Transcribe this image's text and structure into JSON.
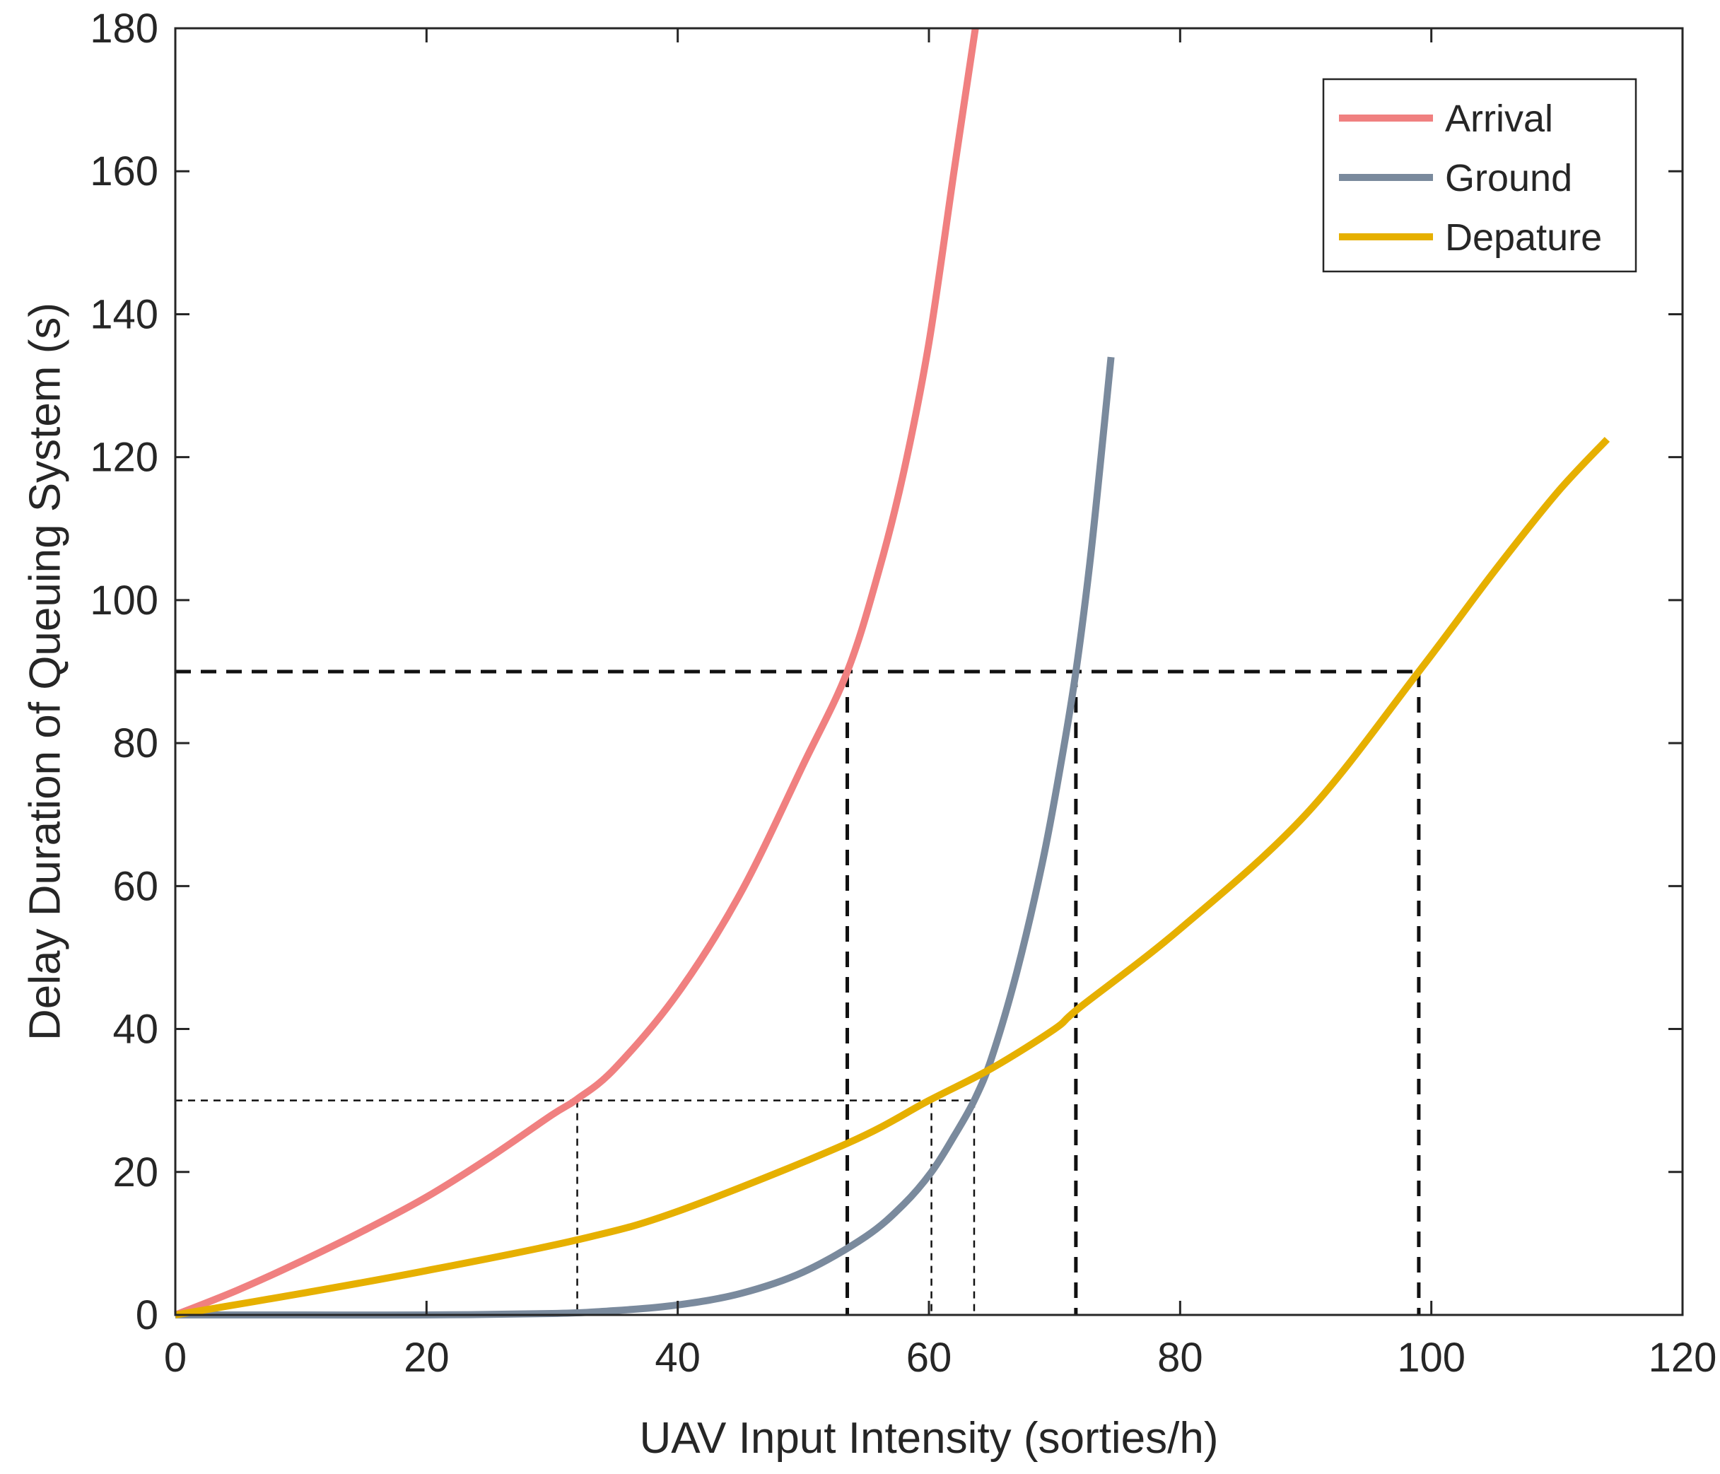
{
  "chart_data": {
    "type": "line",
    "xlabel": "UAV Input Intensity (sorties/h)",
    "ylabel": "Delay Duration of Queuing System (s)",
    "xlim": [
      0,
      120
    ],
    "ylim": [
      0,
      180
    ],
    "xticks": [
      0,
      20,
      40,
      60,
      80,
      100,
      120
    ],
    "yticks": [
      0,
      20,
      40,
      60,
      80,
      100,
      120,
      140,
      160,
      180
    ],
    "xtick_labels": [
      "0",
      "20",
      "40",
      "60",
      "80",
      "100",
      "120"
    ],
    "ytick_labels": [
      "0",
      "20",
      "40",
      "60",
      "80",
      "100",
      "120",
      "140",
      "160",
      "180"
    ],
    "grid": false,
    "legend_position": "top-right",
    "series": [
      {
        "name": "Arrival",
        "color": "#f08080",
        "x": [
          0,
          5,
          10,
          15,
          20,
          25,
          30,
          32,
          35,
          40,
          45,
          50,
          53.5,
          56,
          58,
          60,
          62,
          63.7
        ],
        "y": [
          0,
          3.5,
          7.5,
          11.8,
          16.5,
          22,
          28,
          30.2,
          34.5,
          45,
          59,
          77,
          90,
          104,
          118,
          136,
          160,
          180
        ]
      },
      {
        "name": "Ground",
        "color": "#7a8a9d",
        "x": [
          0,
          10,
          20,
          30,
          35,
          40,
          45,
          50,
          55,
          58,
          60.2,
          62,
          63.6,
          65,
          67,
          69,
          70.5,
          71.7,
          72.8,
          73.7,
          74.5
        ],
        "y": [
          0,
          0,
          0,
          0.2,
          0.6,
          1.4,
          3.0,
          6.0,
          11.0,
          15.5,
          20,
          25,
          30,
          36,
          48,
          63,
          77,
          90,
          105,
          120,
          134
        ]
      },
      {
        "name": "Depature",
        "color": "#e6b000",
        "x": [
          0,
          10,
          20,
          32,
          40,
          53.5,
          60,
          65,
          70,
          72,
          80,
          90,
          99,
          105,
          110,
          114
        ],
        "y": [
          0,
          3,
          6.2,
          10.5,
          14.5,
          24,
          30,
          34.5,
          40,
          43,
          54,
          70,
          90,
          104,
          115,
          122.5
        ]
      }
    ],
    "reference_lines": [
      {
        "style": "bold-dashed",
        "y": 90,
        "x_from": 0,
        "x_to": 99,
        "drops_at_x": [
          53.5,
          71.7,
          99
        ]
      },
      {
        "style": "thin-dashed",
        "y": 30,
        "x_from": 0,
        "x_to": 63.6,
        "drops_at_x": [
          32,
          60.2,
          63.6
        ]
      }
    ]
  }
}
